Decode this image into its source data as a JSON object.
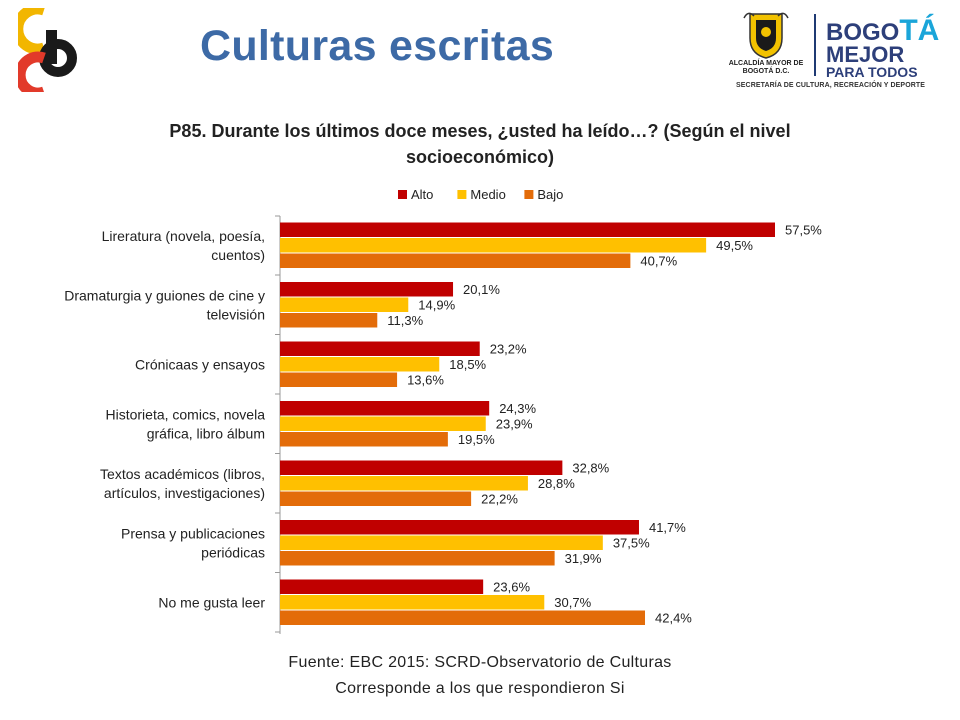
{
  "header": {
    "title": "Culturas escritas"
  },
  "logos": {
    "left": {
      "letters": [
        "c",
        "b"
      ],
      "colors": [
        "#f2b600",
        "#e23a2a",
        "#1a1a1a"
      ]
    },
    "right": {
      "entity": "ALCALDÍA MAYOR DE BOGOTÁ D.C.",
      "brand_line1_a": "BOGO",
      "brand_line1_b": "TÁ",
      "brand_line2": "MEJOR",
      "brand_line3": "PARA TODOS",
      "secretaria": "SECRETARÍA DE CULTURA, RECREACIÓN Y DEPORTE"
    }
  },
  "chart_data": {
    "type": "bar",
    "orientation": "horizontal",
    "title": "P85. Durante los últimos doce meses, ¿usted ha leído…? (Según el nivel socioeconómico)",
    "title_lines": [
      "P85. Durante los últimos doce meses, ¿usted ha leído…? (Según el nivel",
      "socioeconómico)"
    ],
    "legend_position": "top",
    "grid": false,
    "xlim": [
      0,
      60
    ],
    "value_suffix": "%",
    "categories": [
      [
        "Lireratura (novela, poesía,",
        "cuentos)"
      ],
      [
        "Dramaturgia y guiones de cine y",
        "televisión"
      ],
      [
        "Crónicaas y ensayos"
      ],
      [
        "Historieta, comics, novela",
        "gráfica, libro álbum"
      ],
      [
        "Textos académicos (libros,",
        "artículos, investigaciones)"
      ],
      [
        "Prensa y publicaciones",
        "periódicas"
      ],
      [
        "No me gusta leer"
      ]
    ],
    "series": [
      {
        "name": "Alto",
        "color": "#c00000",
        "values": [
          57.5,
          20.1,
          23.2,
          24.3,
          32.8,
          41.7,
          23.6
        ],
        "labels": [
          "57,5%",
          "20,1%",
          "23,2%",
          "24,3%",
          "32,8%",
          "41,7%",
          "23,6%"
        ]
      },
      {
        "name": "Medio",
        "color": "#ffc000",
        "values": [
          49.5,
          14.9,
          18.5,
          23.9,
          28.8,
          37.5,
          30.7
        ],
        "labels": [
          "49,5%",
          "14,9%",
          "18,5%",
          "23,9%",
          "28,8%",
          "37,5%",
          "30,7%"
        ]
      },
      {
        "name": "Bajo",
        "color": "#e36c09",
        "values": [
          40.7,
          11.3,
          13.6,
          19.5,
          22.2,
          31.9,
          42.4
        ],
        "labels": [
          "40,7%",
          "11,3%",
          "13,6%",
          "19,5%",
          "22,2%",
          "31,9%",
          "42,4%"
        ]
      }
    ]
  },
  "footer": {
    "source": "Fuente: EBC 2015: SCRD-Observatorio de Culturas",
    "note": "Corresponde a los que respondieron Si"
  }
}
